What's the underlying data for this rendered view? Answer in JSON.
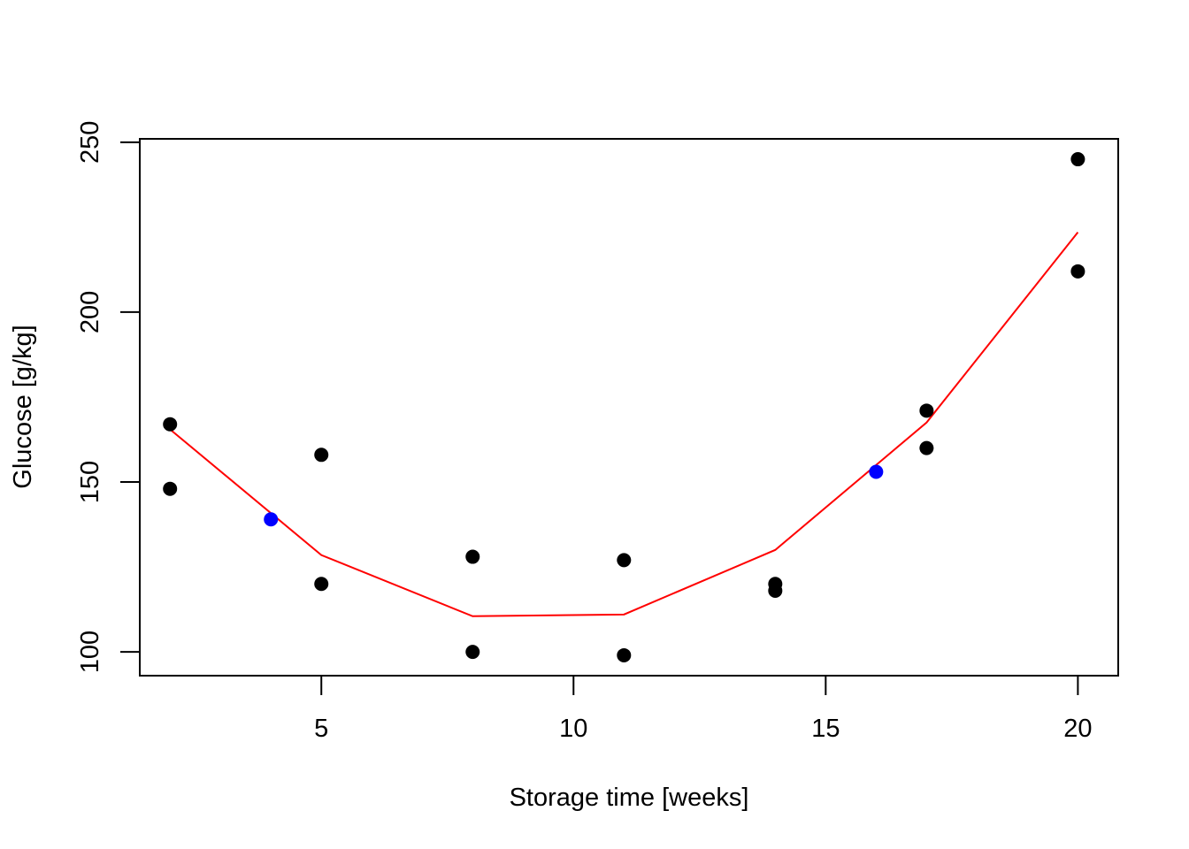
{
  "chart_data": {
    "type": "scatter",
    "title": "",
    "xlabel": "Storage time [weeks]",
    "ylabel": "Glucose [g/kg]",
    "xlim": [
      1.4,
      20.8
    ],
    "ylim": [
      93,
      251
    ],
    "xticks": [
      5,
      10,
      15,
      20
    ],
    "yticks": [
      100,
      150,
      200,
      250
    ],
    "grid": false,
    "legend": "none",
    "series": [
      {
        "kind": "points",
        "color": "#000000",
        "points": [
          [
            2,
            167
          ],
          [
            2,
            148
          ],
          [
            5,
            158
          ],
          [
            5,
            120
          ],
          [
            8,
            128
          ],
          [
            8,
            100
          ],
          [
            11,
            127
          ],
          [
            11,
            99
          ],
          [
            14,
            120
          ],
          [
            14,
            118
          ],
          [
            17,
            171
          ],
          [
            17,
            160
          ],
          [
            20,
            245
          ],
          [
            20,
            212
          ]
        ]
      },
      {
        "kind": "points",
        "color": "#0000ff",
        "points": [
          [
            4,
            139
          ],
          [
            16,
            153
          ]
        ]
      },
      {
        "kind": "line",
        "color": "#ff0000",
        "points": [
          [
            2,
            165.5
          ],
          [
            5,
            128.5
          ],
          [
            8,
            110.5
          ],
          [
            11,
            111
          ],
          [
            14,
            130
          ],
          [
            17,
            167.5
          ],
          [
            20,
            223.5
          ]
        ]
      }
    ]
  }
}
